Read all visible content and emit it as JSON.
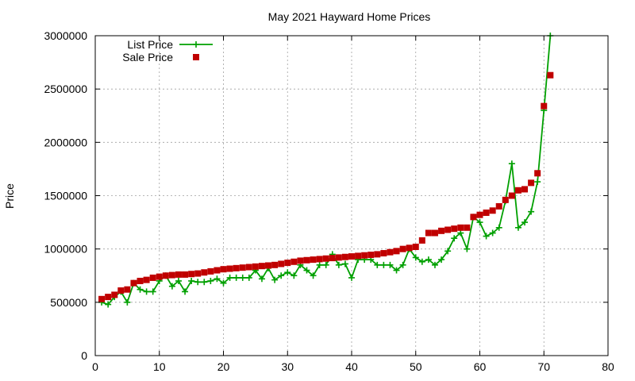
{
  "chart_data": {
    "type": "line",
    "title": "May 2021 Hayward Home Prices",
    "xlabel": "",
    "ylabel": "Price",
    "xlim": [
      0,
      80
    ],
    "ylim": [
      0,
      3000000
    ],
    "xticks": [
      0,
      10,
      20,
      30,
      40,
      50,
      60,
      70,
      80
    ],
    "yticks": [
      0,
      500000,
      1000000,
      1500000,
      2000000,
      2500000,
      3000000
    ],
    "grid": true,
    "legend_position": "top-left",
    "series": [
      {
        "name": "List Price",
        "color": "#00a000",
        "marker": "plus",
        "x": [
          1,
          2,
          3,
          4,
          5,
          6,
          7,
          8,
          9,
          10,
          11,
          12,
          13,
          14,
          15,
          16,
          17,
          18,
          19,
          20,
          21,
          22,
          23,
          24,
          25,
          26,
          27,
          28,
          29,
          30,
          31,
          32,
          33,
          34,
          35,
          36,
          37,
          38,
          39,
          40,
          41,
          42,
          43,
          44,
          45,
          46,
          47,
          48,
          49,
          50,
          51,
          52,
          53,
          54,
          55,
          56,
          57,
          58,
          59,
          60,
          61,
          62,
          63,
          64,
          65,
          66,
          67,
          68,
          69,
          70,
          71
        ],
        "y": [
          500000,
          480000,
          550000,
          600000,
          500000,
          680000,
          620000,
          600000,
          600000,
          700000,
          750000,
          650000,
          700000,
          600000,
          700000,
          690000,
          690000,
          700000,
          720000,
          680000,
          730000,
          730000,
          730000,
          730000,
          800000,
          720000,
          820000,
          710000,
          750000,
          780000,
          750000,
          850000,
          800000,
          750000,
          850000,
          850000,
          950000,
          850000,
          860000,
          730000,
          900000,
          900000,
          900000,
          850000,
          850000,
          850000,
          800000,
          850000,
          1000000,
          920000,
          880000,
          900000,
          850000,
          900000,
          980000,
          1100000,
          1150000,
          1000000,
          1300000,
          1250000,
          1120000,
          1150000,
          1200000,
          1450000,
          1800000,
          1200000,
          1250000,
          1350000,
          1630000,
          2300000,
          3000000
        ]
      },
      {
        "name": "Sale Price",
        "color": "#c00000",
        "marker": "square",
        "x": [
          1,
          2,
          3,
          4,
          5,
          6,
          7,
          8,
          9,
          10,
          11,
          12,
          13,
          14,
          15,
          16,
          17,
          18,
          19,
          20,
          21,
          22,
          23,
          24,
          25,
          26,
          27,
          28,
          29,
          30,
          31,
          32,
          33,
          34,
          35,
          36,
          37,
          38,
          39,
          40,
          41,
          42,
          43,
          44,
          45,
          46,
          47,
          48,
          49,
          50,
          51,
          52,
          53,
          54,
          55,
          56,
          57,
          58,
          59,
          60,
          61,
          62,
          63,
          64,
          65,
          66,
          67,
          68,
          69,
          70,
          71
        ],
        "y": [
          530000,
          550000,
          570000,
          610000,
          620000,
          680000,
          700000,
          710000,
          730000,
          740000,
          750000,
          755000,
          760000,
          760000,
          765000,
          770000,
          780000,
          790000,
          800000,
          810000,
          815000,
          820000,
          825000,
          830000,
          835000,
          840000,
          845000,
          850000,
          860000,
          870000,
          880000,
          890000,
          895000,
          900000,
          905000,
          910000,
          915000,
          920000,
          925000,
          930000,
          935000,
          940000,
          945000,
          950000,
          960000,
          970000,
          980000,
          1000000,
          1010000,
          1020000,
          1080000,
          1150000,
          1150000,
          1170000,
          1180000,
          1190000,
          1200000,
          1200000,
          1300000,
          1320000,
          1340000,
          1360000,
          1400000,
          1460000,
          1500000,
          1550000,
          1560000,
          1620000,
          1710000,
          2340000,
          2630000
        ]
      }
    ]
  }
}
